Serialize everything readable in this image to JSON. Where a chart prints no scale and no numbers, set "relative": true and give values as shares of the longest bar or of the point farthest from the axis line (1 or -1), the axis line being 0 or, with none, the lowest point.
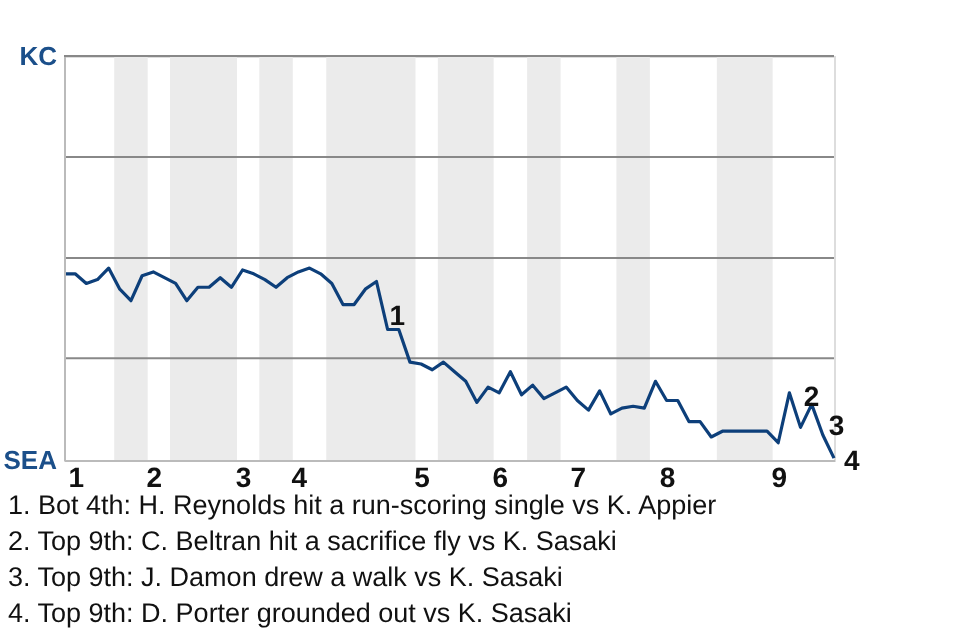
{
  "chart_data": {
    "type": "line",
    "categories": [
      null,
      "1",
      null,
      null,
      null,
      null,
      null,
      null,
      "2",
      null,
      null,
      null,
      null,
      null,
      null,
      null,
      "3",
      null,
      null,
      null,
      null,
      "4",
      null,
      null,
      null,
      null,
      null,
      null,
      null,
      null,
      null,
      null,
      "5",
      null,
      null,
      null,
      null,
      null,
      null,
      "6",
      null,
      null,
      null,
      null,
      null,
      null,
      "7",
      null,
      null,
      null,
      null,
      null,
      null,
      null,
      "8",
      null,
      null,
      null,
      null,
      null,
      null,
      null,
      null,
      null,
      "9",
      null,
      null,
      null,
      null,
      null
    ],
    "series": [
      {
        "color": "#0d3f7a",
        "values": [
          0.97,
          0.97,
          0.92,
          0.94,
          1,
          0.89,
          0.83,
          0.96,
          0.98,
          0.95,
          0.92,
          0.83,
          0.9,
          0.9,
          0.95,
          0.9,
          0.99,
          0.97,
          0.94,
          0.9,
          0.95,
          0.98,
          1,
          0.97,
          0.92,
          0.81,
          0.81,
          0.89,
          0.93,
          0.68,
          0.68,
          0.51,
          0.5,
          0.47,
          0.51,
          0.46,
          0.41,
          0.3,
          0.38,
          0.35,
          0.46,
          0.34,
          0.39,
          0.32,
          0.35,
          0.38,
          0.31,
          0.26,
          0.36,
          0.24,
          0.27,
          0.28,
          0.27,
          0.41,
          0.31,
          0.31,
          0.2,
          0.2,
          0.12,
          0.15,
          0.15,
          0.15,
          0.15,
          0.15,
          0.09,
          0.35,
          0.17,
          0.29,
          0.13,
          0.01
        ]
      }
    ],
    "relative": true,
    "ref_lines": [
      {
        "axis": "y",
        "value": 0.53,
        "color": "#888888"
      }
    ],
    "marker": "none",
    "line_style": "solid",
    "annotations": [
      "KC",
      "SEA",
      {
        "text": "1",
        "y": 0.68
      },
      {
        "text": "2",
        "y": 0.29
      },
      "3",
      "4",
      "1. Bot 4th: H. Reynolds hit a run-scoring single vs K. Appier",
      "2. Top 9th: C. Beltran hit a sacrifice fly vs K. Sasaki",
      "3. Top 9th: J. Damon drew a walk vs K. Sasaki",
      "4. Top 9th: D. Porter grounded out vs K. Sasaki"
    ]
  }
}
